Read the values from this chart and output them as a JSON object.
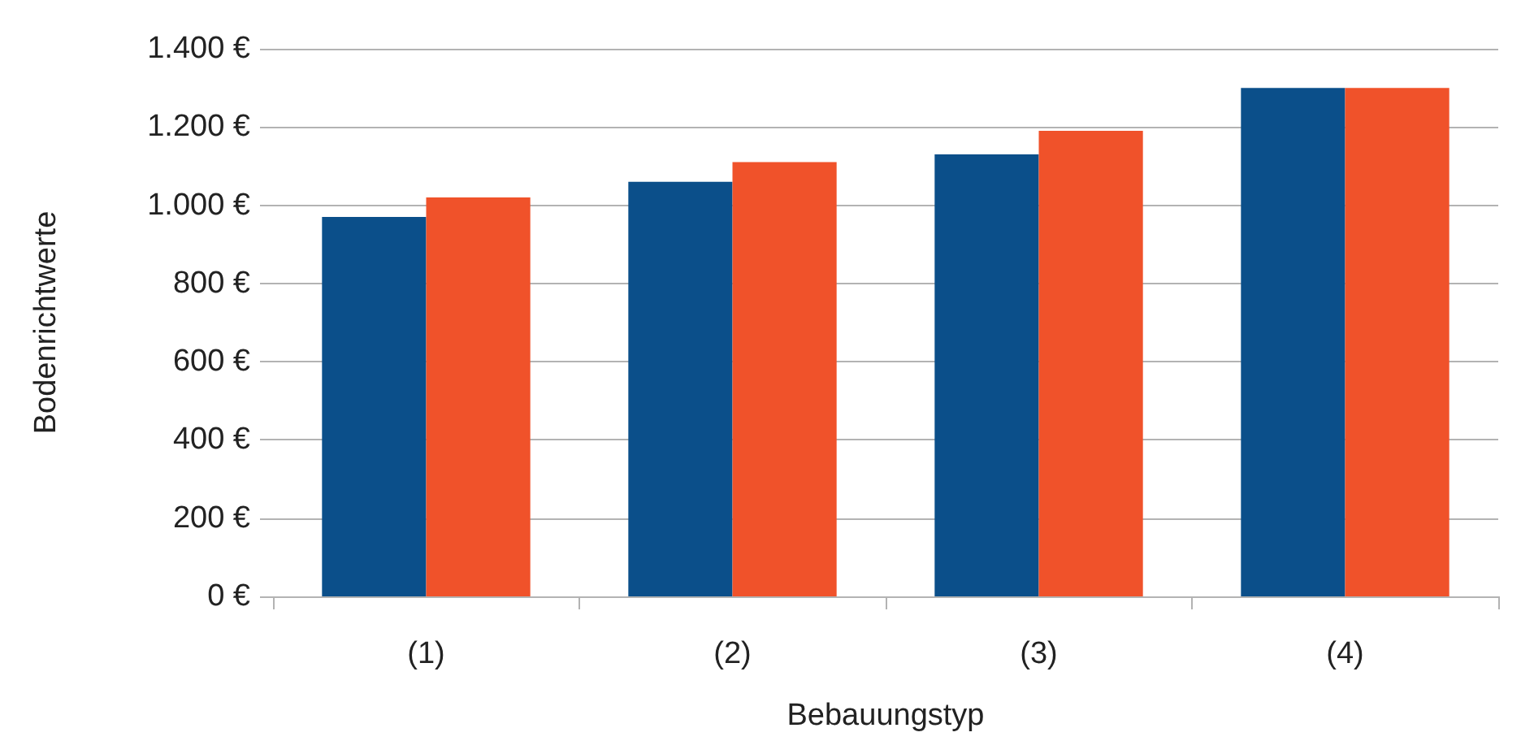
{
  "chart_data": {
    "type": "bar",
    "xlabel": "Bebauungstyp",
    "ylabel": "Bodenrichtwerte",
    "categories": [
      "(1)",
      "(2)",
      "(3)",
      "(4)"
    ],
    "series": [
      {
        "color": "#0b4f8a",
        "values": [
          970,
          1060,
          1130,
          1300
        ]
      },
      {
        "color": "#f0522a",
        "values": [
          1020,
          1110,
          1190,
          1300
        ]
      }
    ],
    "ylim": [
      0,
      1400
    ],
    "yticks": [
      {
        "value": 0,
        "label": "0 €"
      },
      {
        "value": 200,
        "label": "200 €"
      },
      {
        "value": 400,
        "label": "400 €"
      },
      {
        "value": 600,
        "label": "600 €"
      },
      {
        "value": 800,
        "label": "800 €"
      },
      {
        "value": 1000,
        "label": "1.000 €"
      },
      {
        "value": 1200,
        "label": "1.200 €"
      },
      {
        "value": 1400,
        "label": "1.400 €"
      }
    ],
    "grid": "y"
  }
}
